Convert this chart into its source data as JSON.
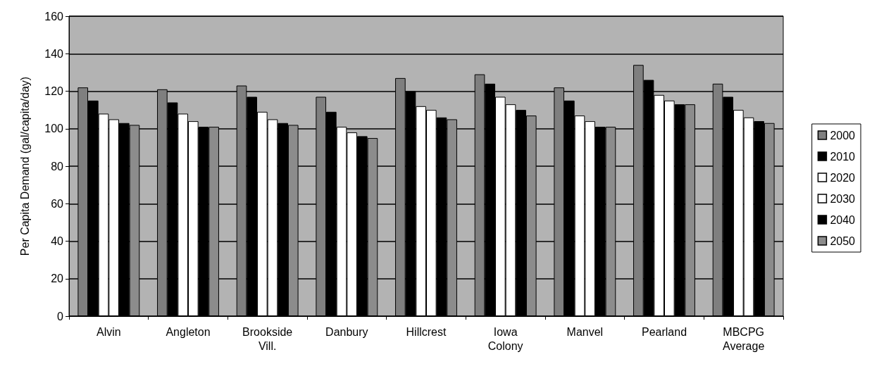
{
  "chart_data": {
    "type": "bar",
    "ylabel": "Per Capita Demand (gal/capita/day)",
    "categories": [
      "Alvin",
      "Angleton",
      "Brookside\nVill.",
      "Danbury",
      "Hillcrest",
      "Iowa\nColony",
      "Manvel",
      "Pearland",
      "MBCPG\nAverage"
    ],
    "series": [
      {
        "name": "2000",
        "color": "#7f7f7f",
        "values": [
          122,
          121,
          123,
          117,
          127,
          129,
          122,
          134,
          124
        ]
      },
      {
        "name": "2010",
        "color": "#000000",
        "values": [
          115,
          114,
          117,
          109,
          120,
          124,
          115,
          126,
          117
        ]
      },
      {
        "name": "2020",
        "color": "#ffffff",
        "values": [
          108,
          108,
          109,
          101,
          112,
          117,
          107,
          118,
          110
        ]
      },
      {
        "name": "2030",
        "color": "#ffffff",
        "values": [
          105,
          104,
          105,
          98,
          110,
          113,
          104,
          115,
          106
        ]
      },
      {
        "name": "2040",
        "color": "#000000",
        "values": [
          103,
          101,
          103,
          96,
          106,
          110,
          101,
          113,
          104
        ]
      },
      {
        "name": "2050",
        "color": "#8c8c8c",
        "values": [
          102,
          101,
          102,
          95,
          105,
          107,
          101,
          113,
          103
        ]
      }
    ],
    "ylim": [
      0,
      160
    ],
    "yticks": [
      0,
      20,
      40,
      60,
      80,
      100,
      120,
      140,
      160
    ],
    "grid": "y",
    "legend": "right"
  }
}
